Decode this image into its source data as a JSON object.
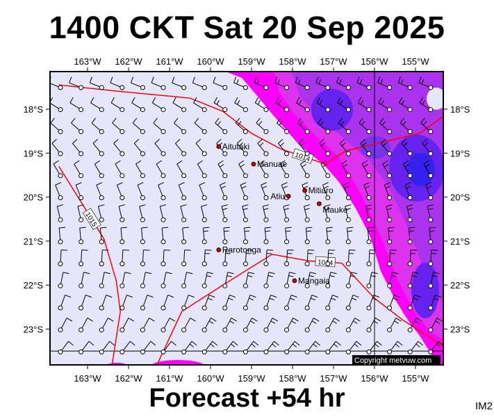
{
  "title": "1400 CKT Sat 20 Sep 2025",
  "footer": "Forecast +54 hr",
  "corner_label": "IM2",
  "copyright": "Copyright metvuw.com",
  "lon_labels": [
    "163°W",
    "162°W",
    "161°W",
    "160°W",
    "159°W",
    "158°W",
    "157°W",
    "156°W",
    "155°W"
  ],
  "lat_labels": [
    "18°S",
    "19°S",
    "20°S",
    "21°S",
    "22°S",
    "23°S"
  ],
  "places": [
    {
      "name": "Aitutaki",
      "lon": -159.8,
      "lat": -18.85
    },
    {
      "name": "Manuae",
      "lon": -158.95,
      "lat": -19.25
    },
    {
      "name": "Atiu",
      "lon": -158.1,
      "lat": -19.98
    },
    {
      "name": "Mitiaro",
      "lon": -157.7,
      "lat": -19.85
    },
    {
      "name": "Mauke",
      "lon": -157.35,
      "lat": -20.15
    },
    {
      "name": "Rarotonga",
      "lon": -159.8,
      "lat": -21.2
    },
    {
      "name": "Mangaia",
      "lon": -157.95,
      "lat": -21.9
    }
  ],
  "isobars": [
    {
      "label": "1014",
      "points": [
        [
          -163.7,
          -17.45
        ],
        [
          -162.2,
          -17.6
        ],
        [
          -160.5,
          -17.75
        ],
        [
          -159.7,
          -18.05
        ],
        [
          -159.0,
          -18.55
        ],
        [
          -158.3,
          -18.9
        ],
        [
          -157.2,
          -19.25
        ],
        [
          -156.7,
          -18.95
        ],
        [
          -155.8,
          -18.75
        ],
        [
          -154.9,
          -18.55
        ],
        [
          -154.3,
          -18.15
        ]
      ]
    },
    {
      "label": "1015",
      "points": [
        [
          -163.7,
          -19.3
        ],
        [
          -163.2,
          -20.05
        ],
        [
          -162.6,
          -20.95
        ],
        [
          -162.3,
          -21.9
        ],
        [
          -162.2,
          -22.6
        ],
        [
          -162.4,
          -23.8
        ]
      ]
    },
    {
      "label": "1014",
      "points": [
        [
          -161.3,
          -23.8
        ],
        [
          -160.7,
          -22.6
        ],
        [
          -159.7,
          -22.0
        ],
        [
          -158.5,
          -21.3
        ],
        [
          -157.6,
          -21.45
        ],
        [
          -156.8,
          -21.5
        ],
        [
          -156.0,
          -22.3
        ],
        [
          -155.3,
          -22.8
        ],
        [
          -154.3,
          -23.4
        ]
      ]
    }
  ],
  "colors": {
    "background": "#e6e6fa",
    "wind_band_1": "#ff00ff",
    "wind_band_2": "#dd33ee",
    "wind_band_3": "#aa33ee",
    "wind_band_4": "#6622ee",
    "isobar": "#ff0000",
    "place_dot": "#cc0000"
  }
}
